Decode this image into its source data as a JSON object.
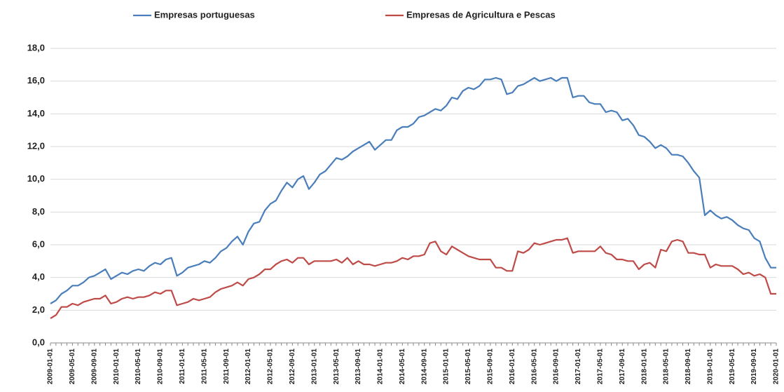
{
  "chart_data": {
    "type": "line",
    "categories": [
      "2009-01-01",
      null,
      null,
      null,
      "2009-05-01",
      null,
      null,
      null,
      "2009-09-01",
      null,
      null,
      null,
      "2010-01-01",
      null,
      null,
      null,
      "2010-05-01",
      null,
      null,
      null,
      "2010-09-01",
      null,
      null,
      null,
      "2011-01-01",
      null,
      null,
      null,
      "2011-05-01",
      null,
      null,
      null,
      "2011-09-01",
      null,
      null,
      null,
      "2012-01-01",
      null,
      null,
      null,
      "2012-05-01",
      null,
      null,
      null,
      "2012-09-01",
      null,
      null,
      null,
      "2013-01-01",
      null,
      null,
      null,
      "2013-05-01",
      null,
      null,
      null,
      "2013-09-01",
      null,
      null,
      null,
      "2014-01-01",
      null,
      null,
      null,
      "2014-05-01",
      null,
      null,
      null,
      "2014-09-01",
      null,
      null,
      null,
      "2015-01-01",
      null,
      null,
      null,
      "2015-05-01",
      null,
      null,
      null,
      "2015-09-01",
      null,
      null,
      null,
      "2016-01-01",
      null,
      null,
      null,
      "2016-05-01",
      null,
      null,
      null,
      "2016-09-01",
      null,
      null,
      null,
      "2017-01-01",
      null,
      null,
      null,
      "2017-05-01",
      null,
      null,
      null,
      "2017-09-01",
      null,
      null,
      null,
      "2018-01-01",
      null,
      null,
      null,
      "2018-05-01",
      null,
      null,
      null,
      "2018-09-01",
      null,
      null,
      null,
      "2019-01-01",
      null,
      null,
      null,
      "2019-05-01",
      null,
      null,
      null,
      "2019-09-01",
      null,
      null,
      null,
      "2020-01-01"
    ],
    "series": [
      {
        "name": "Empresas portuguesas",
        "color": "#4a7ebb",
        "values": [
          2.4,
          2.6,
          3.0,
          3.2,
          3.5,
          3.5,
          3.7,
          4.0,
          4.1,
          4.3,
          4.5,
          3.9,
          4.1,
          4.3,
          4.2,
          4.4,
          4.5,
          4.4,
          4.7,
          4.9,
          4.8,
          5.1,
          5.2,
          4.1,
          4.3,
          4.6,
          4.7,
          4.8,
          5.0,
          4.9,
          5.2,
          5.6,
          5.8,
          6.2,
          6.5,
          6.0,
          6.8,
          7.3,
          7.4,
          8.1,
          8.5,
          8.7,
          9.3,
          9.8,
          9.5,
          10.0,
          10.2,
          9.4,
          9.8,
          10.3,
          10.5,
          10.9,
          11.3,
          11.2,
          11.4,
          11.7,
          11.9,
          12.1,
          12.3,
          11.8,
          12.1,
          12.4,
          12.4,
          13.0,
          13.2,
          13.2,
          13.4,
          13.8,
          13.9,
          14.1,
          14.3,
          14.2,
          14.5,
          15.0,
          14.9,
          15.4,
          15.6,
          15.5,
          15.7,
          16.1,
          16.1,
          16.2,
          16.1,
          15.2,
          15.3,
          15.7,
          15.8,
          16.0,
          16.2,
          16.0,
          16.1,
          16.2,
          16.0,
          16.2,
          16.2,
          15.0,
          15.1,
          15.1,
          14.7,
          14.6,
          14.6,
          14.1,
          14.2,
          14.1,
          13.6,
          13.7,
          13.3,
          12.7,
          12.6,
          12.3,
          11.9,
          12.1,
          11.9,
          11.5,
          11.5,
          11.4,
          11.0,
          10.5,
          10.1,
          7.8,
          8.1,
          7.8,
          7.6,
          7.7,
          7.5,
          7.2,
          7.0,
          6.9,
          6.4,
          6.2,
          5.2,
          4.6,
          4.6
        ]
      },
      {
        "name": "Empresas de Agricultura e Pescas",
        "color": "#be4b48",
        "values": [
          1.5,
          1.7,
          2.2,
          2.2,
          2.4,
          2.3,
          2.5,
          2.6,
          2.7,
          2.7,
          2.9,
          2.4,
          2.5,
          2.7,
          2.8,
          2.7,
          2.8,
          2.8,
          2.9,
          3.1,
          3.0,
          3.2,
          3.2,
          2.3,
          2.4,
          2.5,
          2.7,
          2.6,
          2.7,
          2.8,
          3.1,
          3.3,
          3.4,
          3.5,
          3.7,
          3.5,
          3.9,
          4.0,
          4.2,
          4.5,
          4.5,
          4.8,
          5.0,
          5.1,
          4.9,
          5.2,
          5.2,
          4.8,
          5.0,
          5.0,
          5.0,
          5.0,
          5.1,
          4.9,
          5.2,
          4.8,
          5.0,
          4.8,
          4.8,
          4.7,
          4.8,
          4.9,
          4.9,
          5.0,
          5.2,
          5.1,
          5.3,
          5.3,
          5.4,
          6.1,
          6.2,
          5.6,
          5.4,
          5.9,
          5.7,
          5.5,
          5.3,
          5.2,
          5.1,
          5.1,
          5.1,
          4.6,
          4.6,
          4.4,
          4.4,
          5.6,
          5.5,
          5.7,
          6.1,
          6.0,
          6.1,
          6.2,
          6.3,
          6.3,
          6.4,
          5.5,
          5.6,
          5.6,
          5.6,
          5.6,
          5.9,
          5.5,
          5.4,
          5.1,
          5.1,
          5.0,
          5.0,
          4.5,
          4.8,
          4.9,
          4.6,
          5.7,
          5.6,
          6.2,
          6.3,
          6.2,
          5.5,
          5.5,
          5.4,
          5.4,
          4.6,
          4.8,
          4.7,
          4.7,
          4.7,
          4.5,
          4.2,
          4.3,
          4.1,
          4.2,
          4.0,
          3.0,
          3.0
        ]
      }
    ],
    "ylim": [
      0,
      18
    ],
    "yticks": [
      {
        "value": 0,
        "label": "0,0"
      },
      {
        "value": 2,
        "label": "2,0"
      },
      {
        "value": 4,
        "label": "4,0"
      },
      {
        "value": 6,
        "label": "6,0"
      },
      {
        "value": 8,
        "label": "8,0"
      },
      {
        "value": 10,
        "label": "10,0"
      },
      {
        "value": 12,
        "label": "12,0"
      },
      {
        "value": 14,
        "label": "14,0"
      },
      {
        "value": 16,
        "label": "16,0"
      },
      {
        "value": 18,
        "label": "18,0"
      }
    ],
    "grid": true,
    "legend": "top"
  }
}
